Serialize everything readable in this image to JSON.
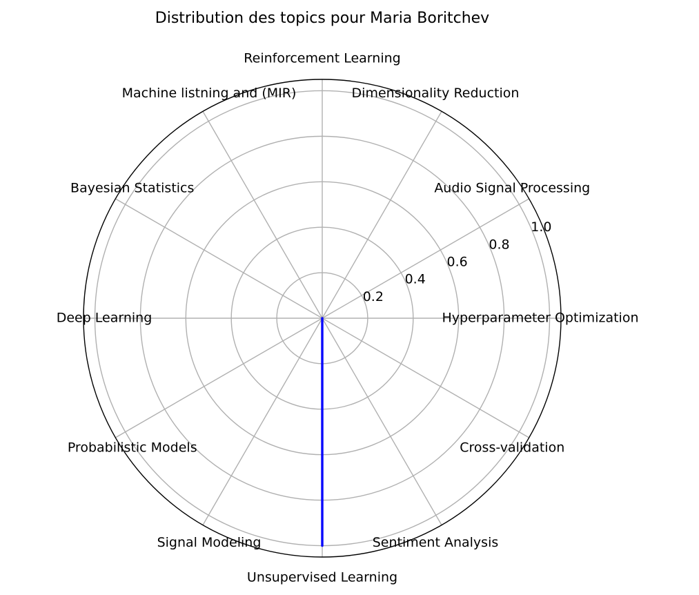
{
  "chart_data": {
    "type": "radar",
    "title": "Distribution des topics pour Maria Boritchev",
    "categories": [
      "Hyperparameter Optimization",
      "Audio Signal Processing",
      "Dimensionality Reduction",
      "Reinforcement Learning",
      "Machine listning and (MIR)",
      "Bayesian Statistics",
      "Deep Learning",
      "Probabilistic Models",
      "Signal Modeling",
      "Unsupervised Learning",
      "Sentiment Analysis",
      "Cross-validation"
    ],
    "series": [
      {
        "color": "#0000ff",
        "values": [
          0,
          0,
          0,
          0,
          0,
          0,
          0,
          0,
          0,
          1.0,
          0,
          0
        ]
      }
    ],
    "rlim": [
      0,
      1.05
    ],
    "rticks": [
      0.2,
      0.4,
      0.6,
      0.8,
      1.0
    ],
    "rtick_labels": [
      "0.2",
      "0.4",
      "0.6",
      "0.8",
      "1.0"
    ],
    "grid": true,
    "legend": false
  }
}
